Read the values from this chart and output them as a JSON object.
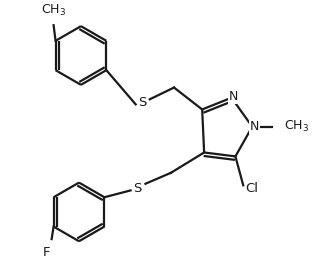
{
  "background": "#ffffff",
  "line_color": "#1a1a1a",
  "line_width": 1.6,
  "font_size": 9.5,
  "figsize": [
    3.22,
    2.6
  ],
  "dpi": 100,
  "xlim": [
    -3.8,
    3.8
  ],
  "ylim": [
    -3.0,
    3.2
  ]
}
